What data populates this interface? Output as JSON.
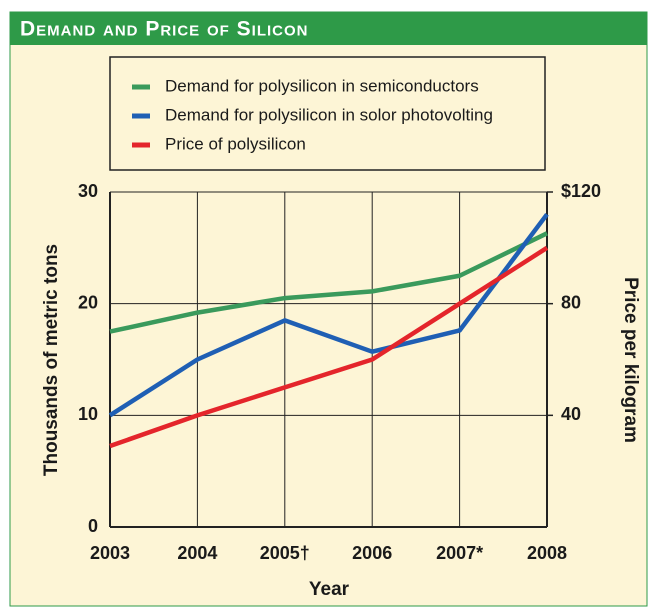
{
  "chart_data": {
    "type": "line",
    "title": "Demand and Price of Silicon",
    "x_label": "Year",
    "y_label": "Thousands of metric tons",
    "y2_label": "Price per kilogram",
    "categories": [
      "2003",
      "2004",
      "2005†",
      "2006",
      "2007*",
      "2008"
    ],
    "series": [
      {
        "name": "Demand for polysilicon in semiconductors",
        "color": "#3a9a5c",
        "values": [
          17.5,
          19.2,
          20.5,
          21.1,
          22.5,
          26.3
        ]
      },
      {
        "name": "Demand for polysilicon in solor photovolting",
        "color": "#1f5fb4",
        "values": [
          10,
          15,
          18.5,
          15.7,
          17.6,
          28
        ]
      },
      {
        "name": "Price of polysilicon",
        "color": "#e4252b",
        "axis": "y2",
        "values": [
          29,
          40,
          50,
          60,
          80,
          100
        ]
      }
    ],
    "ylim": [
      0,
      30
    ],
    "yticks": [
      0,
      10,
      20,
      30
    ],
    "y2lim": [
      0,
      120
    ],
    "y2ticks": [
      40,
      80,
      {
        "value": 120,
        "label": "$120"
      }
    ],
    "grid": true,
    "legend": "top"
  }
}
